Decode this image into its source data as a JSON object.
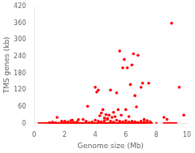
{
  "chart_data": {
    "type": "scatter",
    "xlabel": "Genome size (Mb)",
    "ylabel": "TMS genes (kb)",
    "xlim": [
      0,
      10
    ],
    "ylim": [
      0,
      420
    ],
    "xticks": [
      0,
      2,
      4,
      6,
      8,
      10
    ],
    "yticks": [
      0,
      60,
      120,
      180,
      240,
      300,
      360,
      420
    ],
    "color": "#ff0000",
    "marker": "circle",
    "grid": false,
    "x": [
      0.3,
      0.4,
      0.5,
      0.6,
      0.7,
      0.8,
      0.9,
      1.0,
      1.05,
      1.1,
      1.15,
      1.2,
      1.25,
      1.3,
      1.35,
      1.4,
      1.45,
      1.5,
      1.55,
      1.6,
      1.65,
      1.7,
      1.75,
      1.8,
      1.85,
      1.9,
      1.95,
      2.0,
      2.05,
      2.1,
      2.15,
      2.2,
      2.25,
      2.3,
      2.35,
      2.4,
      2.45,
      2.5,
      2.55,
      2.6,
      2.65,
      2.7,
      2.75,
      2.8,
      2.85,
      2.9,
      2.9,
      2.95,
      3.0,
      3.05,
      3.1,
      3.15,
      3.2,
      3.25,
      3.3,
      3.35,
      3.4,
      3.45,
      3.5,
      3.55,
      3.6,
      3.65,
      3.7,
      3.75,
      3.8,
      3.85,
      3.9,
      3.95,
      4.0,
      4.0,
      4.05,
      4.1,
      4.1,
      4.15,
      4.2,
      4.2,
      4.25,
      4.3,
      4.3,
      4.35,
      4.4,
      4.4,
      4.45,
      4.5,
      4.5,
      4.55,
      4.6,
      4.6,
      4.65,
      4.7,
      4.7,
      4.75,
      4.8,
      4.8,
      4.85,
      4.9,
      4.9,
      4.95,
      5.0,
      5.0,
      5.05,
      5.1,
      5.1,
      5.15,
      5.2,
      5.2,
      5.25,
      5.3,
      5.3,
      5.35,
      5.4,
      5.4,
      5.45,
      5.5,
      5.5,
      5.55,
      5.6,
      5.6,
      5.65,
      5.7,
      5.7,
      5.75,
      5.8,
      5.8,
      5.85,
      5.9,
      5.9,
      5.95,
      6.0,
      6.0,
      6.05,
      6.1,
      6.1,
      6.15,
      6.2,
      6.2,
      6.25,
      6.3,
      6.3,
      6.35,
      6.4,
      6.4,
      6.45,
      6.5,
      6.5,
      6.55,
      6.6,
      6.6,
      6.65,
      6.7,
      6.7,
      6.75,
      6.8,
      6.8,
      6.85,
      6.9,
      6.95,
      7.0,
      7.0,
      7.05,
      7.1,
      7.1,
      7.15,
      7.2,
      7.2,
      7.25,
      7.3,
      7.35,
      7.4,
      7.5,
      7.5,
      7.6,
      7.65,
      7.7,
      8.0,
      8.5,
      8.7,
      9.0,
      9.5,
      9.8,
      1.5,
      1.8,
      2.5,
      1.0,
      1.2,
      1.4,
      2.0,
      2.2,
      2.4,
      2.6,
      2.8,
      3.2,
      3.4,
      3.6,
      3.8,
      4.0,
      4.2,
      4.4,
      4.6,
      4.8,
      5.0,
      5.2,
      5.4,
      5.6,
      5.8,
      6.0,
      6.2,
      6.4,
      6.6,
      6.8,
      7.0,
      7.2,
      7.4,
      7.6,
      8.5,
      8.6,
      8.7,
      8.8,
      8.9,
      9.0,
      9.1,
      9.2,
      9.3
    ],
    "values": [
      0,
      0,
      0,
      0,
      0,
      0,
      0,
      0,
      0,
      0,
      0,
      0,
      0,
      0,
      0,
      0,
      0,
      0,
      0,
      0,
      0,
      0,
      0,
      0,
      0,
      0,
      0,
      0,
      0,
      0,
      0,
      0,
      0,
      0,
      0,
      0,
      0,
      0,
      0,
      0,
      0,
      0,
      0,
      0,
      0,
      0,
      14,
      0,
      0,
      0,
      0,
      0,
      0,
      0,
      0,
      0,
      0,
      0,
      62,
      0,
      0,
      0,
      0,
      0,
      0,
      0,
      0,
      0,
      0,
      130,
      0,
      0,
      113,
      0,
      0,
      120,
      0,
      0,
      28,
      0,
      0,
      38,
      0,
      0,
      50,
      0,
      0,
      20,
      0,
      0,
      32,
      0,
      0,
      18,
      0,
      0,
      30,
      0,
      0,
      120,
      0,
      0,
      22,
      0,
      0,
      40,
      0,
      0,
      25,
      0,
      0,
      110,
      0,
      0,
      50,
      0,
      0,
      260,
      0,
      0,
      30,
      0,
      0,
      200,
      0,
      0,
      230,
      0,
      0,
      50,
      0,
      0,
      200,
      0,
      0,
      25,
      0,
      0,
      140,
      0,
      0,
      210,
      0,
      0,
      250,
      0,
      0,
      100,
      0,
      0,
      60,
      0,
      0,
      245,
      0,
      0,
      0,
      0,
      130,
      0,
      0,
      145,
      0,
      0,
      15,
      0,
      0,
      0,
      0,
      0,
      145,
      0,
      0,
      0,
      0,
      22,
      15,
      360,
      130,
      30,
      22,
      8,
      12,
      3,
      5,
      2,
      8,
      6,
      10,
      4,
      6,
      15,
      8,
      3,
      5,
      12,
      8,
      6,
      10,
      15,
      8,
      5,
      12,
      8,
      6,
      10,
      5,
      8,
      6,
      4,
      8,
      5,
      10,
      6,
      0,
      0,
      0,
      0,
      0,
      0,
      0,
      0,
      0
    ]
  }
}
